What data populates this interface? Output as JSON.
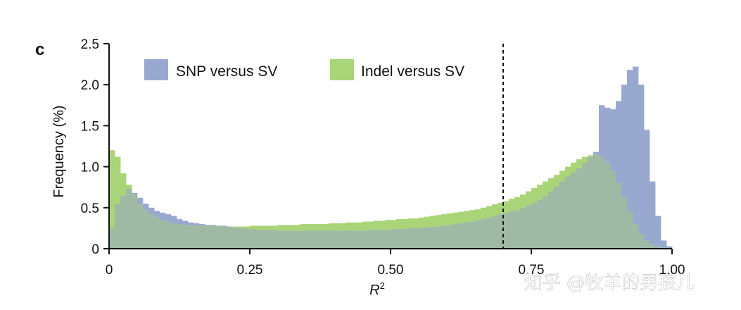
{
  "panel_label": "c",
  "watermark": "知乎 @牧羊的男孩儿",
  "colors": {
    "snp": "#98a8cf",
    "indel": "#a9d477",
    "overlap": "#9fb9a4",
    "axis": "#111111"
  },
  "chart_data": {
    "type": "bar",
    "subtype": "histogram-overlay",
    "title": "",
    "xlabel": "R",
    "xlabel_superscript": "2",
    "ylabel": "Frequency (%)",
    "xlim": [
      0,
      1
    ],
    "ylim": [
      0,
      2.5
    ],
    "bin_width": 0.01,
    "x_ticks": [
      0,
      0.25,
      0.5,
      0.75,
      1.0
    ],
    "x_tick_labels": [
      "0",
      "0.25",
      "0.50",
      "0.75",
      "1.00"
    ],
    "y_ticks": [
      0,
      0.5,
      1.0,
      1.5,
      2.0,
      2.5
    ],
    "y_tick_labels": [
      "0",
      "0.5",
      "1.0",
      "1.5",
      "2.0",
      "2.5"
    ],
    "threshold": 0.7,
    "grid": false,
    "legend_position": "top-left",
    "series": [
      {
        "name": "SNP versus SV",
        "values": [
          0.25,
          0.55,
          0.65,
          0.73,
          0.68,
          0.62,
          0.55,
          0.5,
          0.46,
          0.44,
          0.42,
          0.4,
          0.36,
          0.34,
          0.32,
          0.31,
          0.3,
          0.29,
          0.29,
          0.28,
          0.28,
          0.27,
          0.26,
          0.25,
          0.24,
          0.24,
          0.23,
          0.23,
          0.23,
          0.23,
          0.22,
          0.22,
          0.22,
          0.22,
          0.22,
          0.22,
          0.22,
          0.22,
          0.22,
          0.22,
          0.22,
          0.22,
          0.22,
          0.22,
          0.22,
          0.22,
          0.23,
          0.23,
          0.23,
          0.23,
          0.24,
          0.24,
          0.24,
          0.25,
          0.25,
          0.26,
          0.26,
          0.27,
          0.27,
          0.28,
          0.29,
          0.3,
          0.31,
          0.32,
          0.33,
          0.35,
          0.36,
          0.38,
          0.4,
          0.42,
          0.43,
          0.45,
          0.47,
          0.5,
          0.53,
          0.56,
          0.6,
          0.64,
          0.7,
          0.76,
          0.82,
          0.88,
          0.93,
          0.98,
          1.05,
          1.12,
          1.18,
          1.75,
          1.72,
          1.7,
          1.8,
          2.0,
          2.18,
          2.22,
          2.0,
          1.45,
          0.82,
          0.4,
          0.1,
          0.03
        ]
      },
      {
        "name": "Indel versus SV",
        "values": [
          1.2,
          1.12,
          0.92,
          0.78,
          0.66,
          0.55,
          0.47,
          0.42,
          0.38,
          0.35,
          0.33,
          0.31,
          0.3,
          0.29,
          0.29,
          0.28,
          0.28,
          0.28,
          0.28,
          0.28,
          0.27,
          0.27,
          0.27,
          0.27,
          0.27,
          0.28,
          0.28,
          0.28,
          0.28,
          0.28,
          0.29,
          0.29,
          0.29,
          0.29,
          0.3,
          0.3,
          0.3,
          0.3,
          0.3,
          0.31,
          0.31,
          0.31,
          0.32,
          0.32,
          0.32,
          0.33,
          0.33,
          0.34,
          0.34,
          0.35,
          0.35,
          0.36,
          0.36,
          0.37,
          0.37,
          0.38,
          0.39,
          0.4,
          0.41,
          0.42,
          0.43,
          0.44,
          0.45,
          0.46,
          0.47,
          0.48,
          0.5,
          0.52,
          0.54,
          0.56,
          0.58,
          0.61,
          0.63,
          0.66,
          0.7,
          0.74,
          0.78,
          0.82,
          0.86,
          0.9,
          0.95,
          1.0,
          1.05,
          1.09,
          1.12,
          1.14,
          1.15,
          1.12,
          1.05,
          0.95,
          0.8,
          0.62,
          0.45,
          0.3,
          0.18,
          0.1,
          0.05,
          0.02,
          0.01,
          0.0
        ]
      }
    ]
  }
}
